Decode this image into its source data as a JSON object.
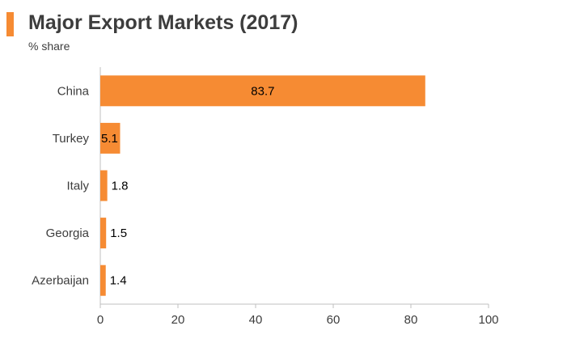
{
  "header": {
    "title": "Major Export Markets (2017)",
    "subtitle": "% share"
  },
  "colors": {
    "accent": "#f68b33",
    "bar": "#f68b33",
    "text": "#3d3d3d",
    "axis": "#bfbfbf"
  },
  "chart_data": {
    "type": "bar",
    "orientation": "horizontal",
    "title": "Major Export Markets (2017)",
    "subtitle": "% share",
    "categories": [
      "China",
      "Turkey",
      "Italy",
      "Georgia",
      "Azerbaijan"
    ],
    "values": [
      83.7,
      5.1,
      1.8,
      1.5,
      1.4
    ],
    "data_labels": [
      "83.7",
      "5.1",
      "1.8",
      "1.5",
      "1.4"
    ],
    "xlim": [
      0,
      100
    ],
    "x_ticks": [
      0,
      20,
      40,
      60,
      80,
      100
    ],
    "grid": false,
    "legend": "none"
  }
}
